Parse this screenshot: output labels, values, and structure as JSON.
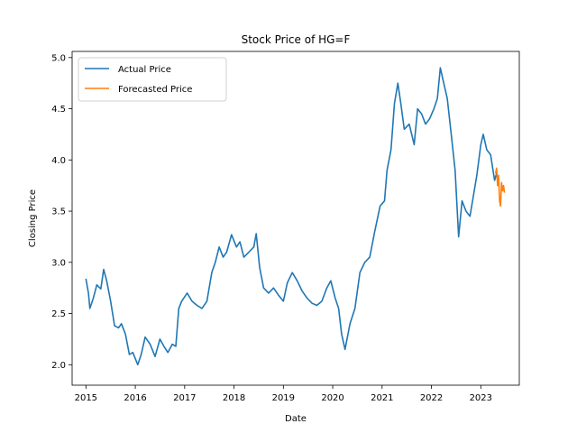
{
  "chart_data": {
    "type": "line",
    "title": "Stock Price of HG=F",
    "xlabel": "Date",
    "ylabel": "Closing Price",
    "xlim": [
      2014.72,
      2023.78
    ],
    "ylim": [
      1.8,
      5.06
    ],
    "x_ticks": [
      2015,
      2016,
      2017,
      2018,
      2019,
      2020,
      2021,
      2022,
      2023
    ],
    "x_tick_labels": [
      "2015",
      "2016",
      "2017",
      "2018",
      "2019",
      "2020",
      "2021",
      "2022",
      "2023"
    ],
    "y_ticks": [
      2.0,
      2.5,
      3.0,
      3.5,
      4.0,
      4.5,
      5.0
    ],
    "y_tick_labels": [
      "2.0",
      "2.5",
      "3.0",
      "3.5",
      "4.0",
      "4.5",
      "5.0"
    ],
    "grid": false,
    "legend": {
      "placement": "top-left"
    },
    "series": [
      {
        "name": "Actual Price",
        "color": "#1f77b4",
        "points": [
          [
            2015.0,
            2.84
          ],
          [
            2015.05,
            2.7
          ],
          [
            2015.08,
            2.55
          ],
          [
            2015.15,
            2.65
          ],
          [
            2015.22,
            2.78
          ],
          [
            2015.3,
            2.74
          ],
          [
            2015.36,
            2.93
          ],
          [
            2015.42,
            2.82
          ],
          [
            2015.5,
            2.62
          ],
          [
            2015.58,
            2.38
          ],
          [
            2015.66,
            2.36
          ],
          [
            2015.72,
            2.4
          ],
          [
            2015.8,
            2.3
          ],
          [
            2015.88,
            2.1
          ],
          [
            2015.95,
            2.12
          ],
          [
            2016.05,
            2.0
          ],
          [
            2016.12,
            2.1
          ],
          [
            2016.2,
            2.27
          ],
          [
            2016.3,
            2.2
          ],
          [
            2016.4,
            2.08
          ],
          [
            2016.5,
            2.25
          ],
          [
            2016.58,
            2.18
          ],
          [
            2016.66,
            2.12
          ],
          [
            2016.75,
            2.2
          ],
          [
            2016.82,
            2.18
          ],
          [
            2016.88,
            2.55
          ],
          [
            2016.94,
            2.62
          ],
          [
            2017.05,
            2.7
          ],
          [
            2017.15,
            2.62
          ],
          [
            2017.25,
            2.58
          ],
          [
            2017.35,
            2.55
          ],
          [
            2017.45,
            2.62
          ],
          [
            2017.55,
            2.9
          ],
          [
            2017.62,
            3.0
          ],
          [
            2017.7,
            3.15
          ],
          [
            2017.78,
            3.05
          ],
          [
            2017.85,
            3.1
          ],
          [
            2017.95,
            3.27
          ],
          [
            2018.05,
            3.15
          ],
          [
            2018.12,
            3.2
          ],
          [
            2018.2,
            3.05
          ],
          [
            2018.3,
            3.1
          ],
          [
            2018.4,
            3.15
          ],
          [
            2018.45,
            3.28
          ],
          [
            2018.52,
            2.95
          ],
          [
            2018.6,
            2.75
          ],
          [
            2018.7,
            2.7
          ],
          [
            2018.8,
            2.75
          ],
          [
            2018.9,
            2.68
          ],
          [
            2019.0,
            2.62
          ],
          [
            2019.08,
            2.8
          ],
          [
            2019.18,
            2.9
          ],
          [
            2019.28,
            2.82
          ],
          [
            2019.38,
            2.72
          ],
          [
            2019.48,
            2.65
          ],
          [
            2019.58,
            2.6
          ],
          [
            2019.68,
            2.58
          ],
          [
            2019.78,
            2.62
          ],
          [
            2019.88,
            2.75
          ],
          [
            2019.96,
            2.82
          ],
          [
            2020.05,
            2.65
          ],
          [
            2020.12,
            2.55
          ],
          [
            2020.18,
            2.3
          ],
          [
            2020.25,
            2.15
          ],
          [
            2020.35,
            2.4
          ],
          [
            2020.45,
            2.55
          ],
          [
            2020.55,
            2.9
          ],
          [
            2020.65,
            3.0
          ],
          [
            2020.75,
            3.05
          ],
          [
            2020.85,
            3.3
          ],
          [
            2020.96,
            3.55
          ],
          [
            2021.05,
            3.6
          ],
          [
            2021.1,
            3.9
          ],
          [
            2021.18,
            4.1
          ],
          [
            2021.25,
            4.55
          ],
          [
            2021.32,
            4.75
          ],
          [
            2021.38,
            4.55
          ],
          [
            2021.45,
            4.3
          ],
          [
            2021.55,
            4.35
          ],
          [
            2021.65,
            4.15
          ],
          [
            2021.72,
            4.5
          ],
          [
            2021.8,
            4.45
          ],
          [
            2021.88,
            4.35
          ],
          [
            2021.96,
            4.4
          ],
          [
            2022.05,
            4.5
          ],
          [
            2022.12,
            4.6
          ],
          [
            2022.18,
            4.9
          ],
          [
            2022.25,
            4.75
          ],
          [
            2022.32,
            4.6
          ],
          [
            2022.4,
            4.25
          ],
          [
            2022.48,
            3.9
          ],
          [
            2022.55,
            3.25
          ],
          [
            2022.62,
            3.6
          ],
          [
            2022.7,
            3.5
          ],
          [
            2022.78,
            3.45
          ],
          [
            2022.85,
            3.65
          ],
          [
            2022.92,
            3.85
          ],
          [
            2023.0,
            4.15
          ],
          [
            2023.05,
            4.25
          ],
          [
            2023.12,
            4.1
          ],
          [
            2023.2,
            4.05
          ],
          [
            2023.28,
            3.8
          ],
          [
            2023.32,
            3.87
          ]
        ]
      },
      {
        "name": "Forecasted Price",
        "color": "#ff7f0e",
        "points": [
          [
            2023.3,
            3.87
          ],
          [
            2023.32,
            3.92
          ],
          [
            2023.34,
            3.75
          ],
          [
            2023.36,
            3.85
          ],
          [
            2023.38,
            3.6
          ],
          [
            2023.4,
            3.55
          ],
          [
            2023.42,
            3.78
          ],
          [
            2023.44,
            3.7
          ],
          [
            2023.46,
            3.75
          ],
          [
            2023.48,
            3.68
          ]
        ]
      }
    ]
  }
}
